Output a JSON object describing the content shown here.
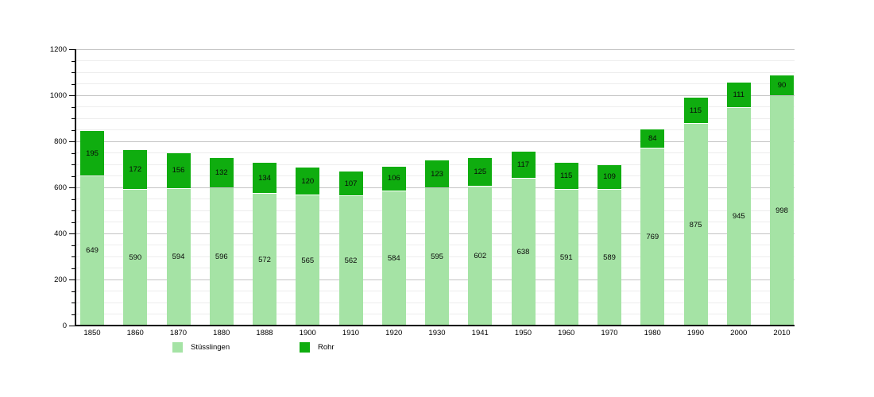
{
  "chart_data": {
    "type": "bar",
    "stacked": true,
    "title": "",
    "categories": [
      "1850",
      "1860",
      "1870",
      "1880",
      "1888",
      "1900",
      "1910",
      "1920",
      "1930",
      "1941",
      "1950",
      "1960",
      "1970",
      "1980",
      "1990",
      "2000",
      "2010"
    ],
    "series": [
      {
        "name": "Stüsslingen",
        "color": "#a5e3a5",
        "values": [
          649,
          590,
          594,
          596,
          572,
          565,
          562,
          584,
          595,
          602,
          638,
          591,
          589,
          769,
          875,
          945,
          998
        ]
      },
      {
        "name": "Rohr",
        "color": "#0fad0f",
        "values": [
          195,
          172,
          156,
          132,
          134,
          120,
          107,
          106,
          123,
          125,
          117,
          115,
          109,
          84,
          115,
          111,
          90
        ]
      }
    ],
    "ylim": [
      0,
      1200
    ],
    "y_tick_labels": [
      "0",
      "200",
      "400",
      "600",
      "800",
      "1000",
      "1200"
    ],
    "y_major_step": 200,
    "y_minor_step": 50,
    "grid": true,
    "legend_position": "bottom",
    "bar_value_labels": true
  },
  "legend": {
    "items": [
      {
        "label": "Stüsslingen",
        "color": "#a5e3a5"
      },
      {
        "label": "Rohr",
        "color": "#0fad0f"
      }
    ]
  },
  "colors": {
    "background": "#ffffff",
    "axis": "#000000",
    "grid_major": "#c4c4c4",
    "grid_minor": "#ededed",
    "label_text": "#000000"
  }
}
